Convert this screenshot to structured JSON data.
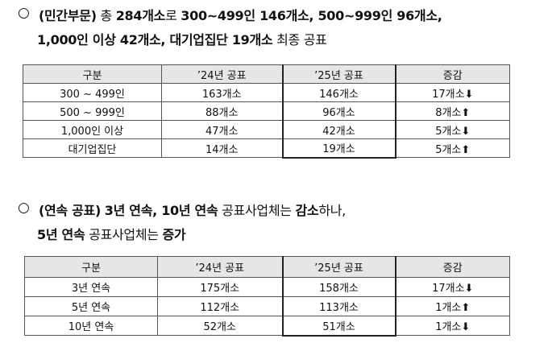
{
  "sections": [
    {
      "bullet": "○",
      "lines": [
        [
          {
            "text": "(민간부문)",
            "bold": true
          },
          {
            "text": " 총 ",
            "bold": false
          },
          {
            "text": "284개소",
            "bold": true
          },
          {
            "text": "로 ",
            "bold": false
          },
          {
            "text": "300~499인 146개소, 500~999인 96개소,",
            "bold": true
          }
        ],
        [
          {
            "text": "1,000인 이상 42개소, 대기업집단 19개소",
            "bold": true
          },
          {
            "text": " 최종 공표",
            "bold": false
          }
        ]
      ],
      "table": {
        "header": [
          "구분",
          "’24년 공표",
          "’25년 공표",
          "증감"
        ],
        "rows": [
          [
            "300 ~ 499인",
            "163개소",
            "146개소",
            "17개소⬇"
          ],
          [
            "500 ~ 999인",
            "88개소",
            "96개소",
            "8개소⬆"
          ],
          [
            "1,000인 이상",
            "47개소",
            "42개소",
            "5개소⬇"
          ],
          [
            "대기업집단",
            "14개소",
            "19개소",
            "5개소⬆"
          ]
        ]
      }
    },
    {
      "bullet": "○",
      "lines": [
        [
          {
            "text": "(연속 공표)",
            "bold": true
          },
          {
            "text": " ",
            "bold": false
          },
          {
            "text": "3년 연속, 10년 연속",
            "bold": true
          },
          {
            "text": " 공표사업체는 ",
            "bold": false
          },
          {
            "text": "감소",
            "bold": true
          },
          {
            "text": "하나,",
            "bold": false
          }
        ],
        [
          {
            "text": "5년 연속",
            "bold": true
          },
          {
            "text": " 공표사업체는 ",
            "bold": false
          },
          {
            "text": "증가",
            "bold": true
          }
        ]
      ],
      "table": {
        "header": [
          "구분",
          "’24년 공표",
          "’25년 공표",
          "증감"
        ],
        "rows": [
          [
            "3년 연속",
            "175개소",
            "158개소",
            "17개소⬇"
          ],
          [
            "5년 연속",
            "112개소",
            "113개소",
            "1개소⬆"
          ],
          [
            "10년 연속",
            "52개소",
            "51개소",
            "1개소⬇"
          ]
        ]
      }
    }
  ]
}
